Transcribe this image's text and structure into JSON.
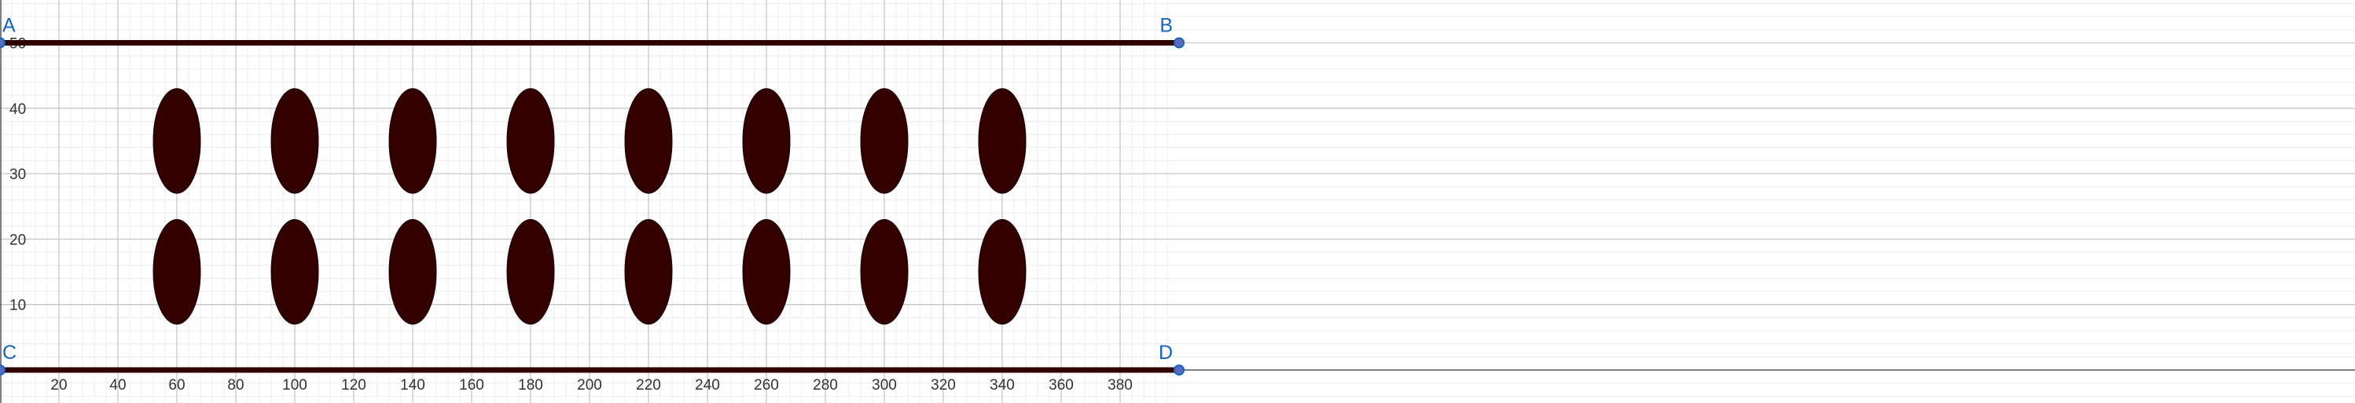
{
  "chart_data": {
    "type": "scatter",
    "title": "",
    "xlabel": "",
    "ylabel": "",
    "xlim": [
      0,
      400
    ],
    "ylim": [
      -5,
      61
    ],
    "grid": true,
    "x_ticks": [
      20,
      40,
      60,
      80,
      100,
      120,
      140,
      160,
      180,
      200,
      220,
      240,
      260,
      280,
      300,
      320,
      340,
      360,
      380
    ],
    "y_ticks": [
      10,
      20,
      30,
      40,
      50
    ],
    "points": [
      {
        "label": "A",
        "x": 0,
        "y": 50
      },
      {
        "label": "B",
        "x": 400,
        "y": 50
      },
      {
        "label": "C",
        "x": 0,
        "y": 0
      },
      {
        "label": "D",
        "x": 400,
        "y": 0
      }
    ],
    "segments": [
      {
        "from": "A",
        "to": "B"
      },
      {
        "from": "C",
        "to": "D"
      }
    ],
    "ellipses": {
      "centers_x": [
        60,
        100,
        140,
        180,
        220,
        260,
        300,
        340
      ],
      "centers_y": [
        15,
        35
      ],
      "rx": 8,
      "ry": 8,
      "fill": "#330000"
    },
    "colors": {
      "segment": "#330000",
      "point_stroke": "#1565c0",
      "point_fill": "#5c6bc0",
      "label": "#1565c0"
    }
  }
}
